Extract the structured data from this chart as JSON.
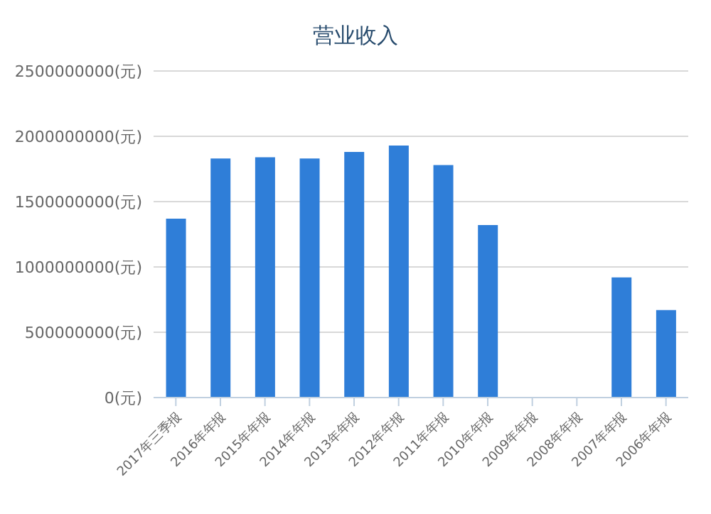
{
  "chart_data": {
    "type": "bar",
    "title": "营业收入",
    "categories": [
      "2017年三季报",
      "2016年年报",
      "2015年年报",
      "2014年年报",
      "2013年年报",
      "2012年年报",
      "2011年年报",
      "2010年年报",
      "2009年年报",
      "2008年年报",
      "2007年年报",
      "2006年年报"
    ],
    "values": [
      1370000000,
      1830000000,
      1840000000,
      1830000000,
      1880000000,
      1930000000,
      1780000000,
      1320000000,
      null,
      null,
      920000000,
      670000000
    ],
    "color": "#2f7ed8",
    "ylim": [
      0,
      2500000000
    ],
    "yticks": [
      {
        "value": 0,
        "label": "0(元)"
      },
      {
        "value": 500000000,
        "label": "500000000(元)"
      },
      {
        "value": 1000000000,
        "label": "1000000000(元)"
      },
      {
        "value": 1500000000,
        "label": "1500000000(元)"
      },
      {
        "value": 2000000000,
        "label": "2000000000(元)"
      },
      {
        "value": 2500000000,
        "label": "2500000000(元)"
      }
    ],
    "grid": "y",
    "legend": false
  }
}
